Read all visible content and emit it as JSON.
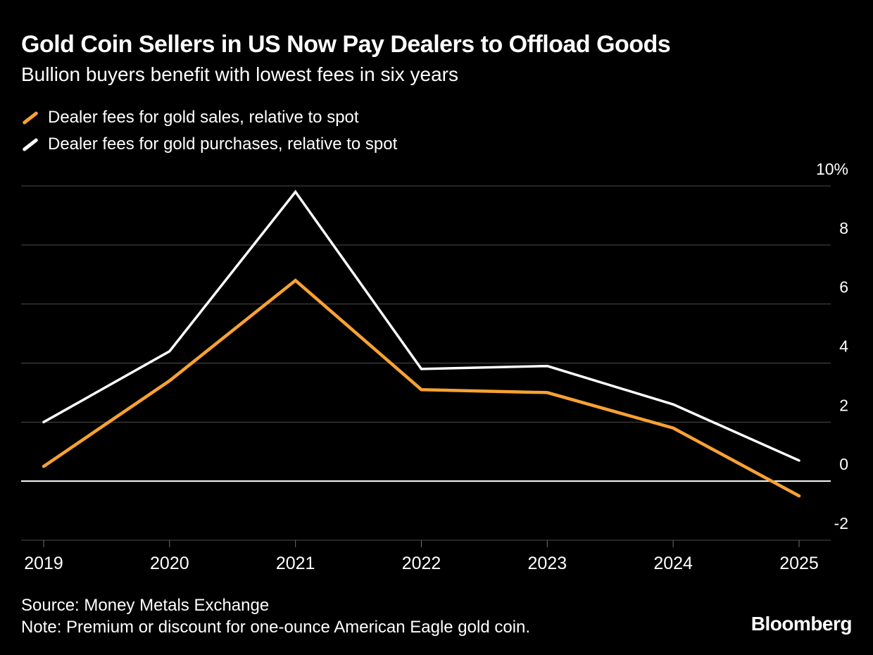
{
  "header": {
    "title": "Gold Coin Sellers in US Now Pay Dealers to Offload Goods",
    "subtitle": "Bullion buyers benefit with lowest fees in six years"
  },
  "legend": [
    {
      "label": "Dealer fees for gold sales, relative to spot",
      "color": "#f7a233"
    },
    {
      "label": "Dealer fees for gold purchases, relative to spot",
      "color": "#ffffff"
    }
  ],
  "chart_data": {
    "type": "line",
    "categories": [
      "2019",
      "2020",
      "2021",
      "2022",
      "2023",
      "2024",
      "2025"
    ],
    "series": [
      {
        "name": "Dealer fees for gold sales, relative to spot",
        "color": "#f7a233",
        "values": [
          0.5,
          3.4,
          6.8,
          3.1,
          3.0,
          1.8,
          -0.5
        ]
      },
      {
        "name": "Dealer fees for gold purchases, relative to spot",
        "color": "#ffffff",
        "values": [
          2.0,
          4.4,
          9.8,
          3.8,
          3.9,
          2.6,
          0.7
        ]
      }
    ],
    "yticks": [
      10,
      8,
      6,
      4,
      2,
      0,
      -2
    ],
    "ytick_labels": [
      "10%",
      "8",
      "6",
      "4",
      "2",
      "0",
      "-2"
    ],
    "ylim": [
      -2,
      10
    ],
    "grid": "horizontal",
    "zero_line": true,
    "legend_position": "top-left",
    "title": "Gold Coin Sellers in US Now Pay Dealers to Offload Goods",
    "xlabel": "",
    "ylabel": ""
  },
  "footer": {
    "source": "Source: Money Metals Exchange",
    "note": "Note: Premium or discount for one-ounce American Eagle gold coin.",
    "brand": "Bloomberg"
  },
  "colors": {
    "background": "#000000",
    "text": "#ffffff",
    "grid": "#4d4d4d",
    "axis": "#6f6f6f",
    "zero_line": "#ffffff",
    "orange": "#f7a233"
  }
}
